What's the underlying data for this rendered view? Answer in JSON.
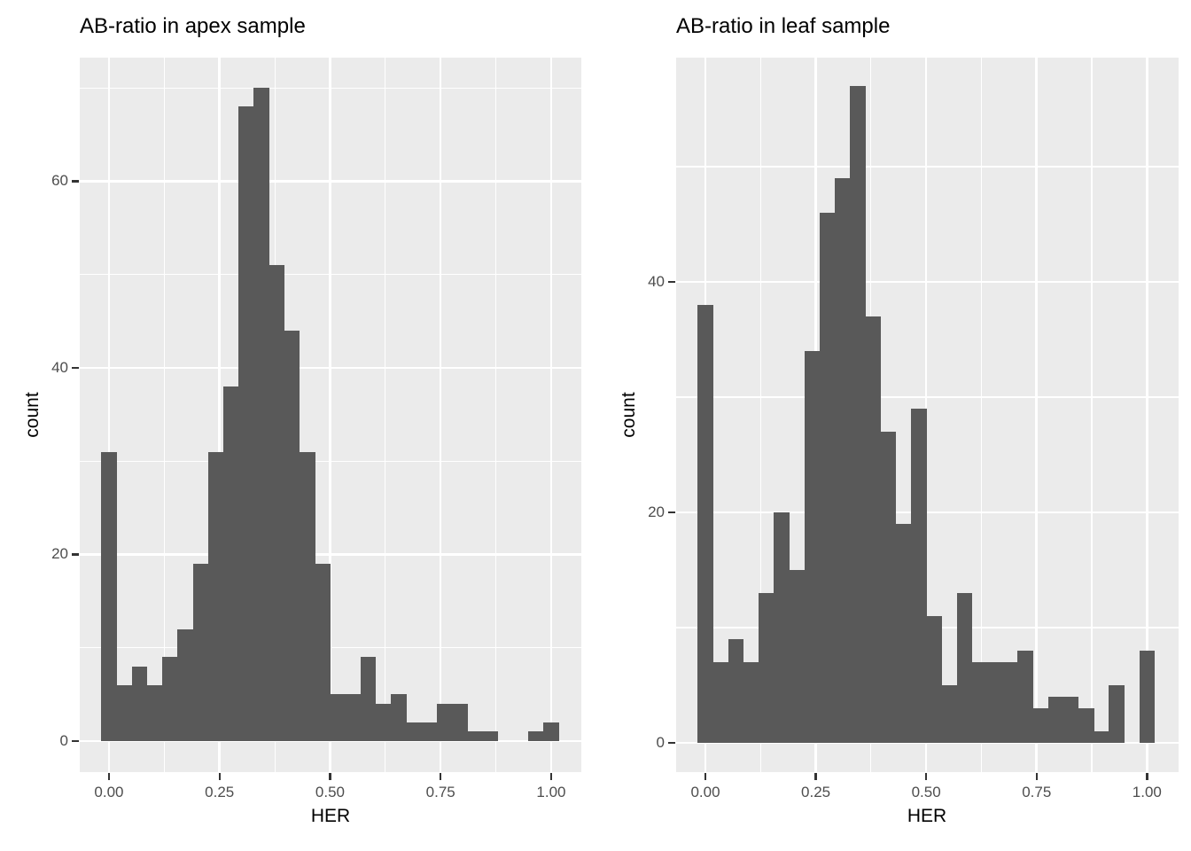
{
  "figure_colors": {
    "background": "#FFFFFF",
    "panel_background": "#EBEBEB",
    "grid_major": "#FFFFFF",
    "grid_minor": "#FFFFFF",
    "bar_fill": "#595959",
    "tick_mark": "#333333",
    "tick_label": "#4D4D4D",
    "title": "#000000"
  },
  "chart_data": [
    {
      "type": "bar",
      "subtype": "histogram",
      "title": "AB-ratio in apex sample",
      "xlabel": "HER",
      "ylabel": "count",
      "bin_width": 0.034483,
      "first_bin_center": 0.0,
      "bin_centers_note": "30 bins centered at k/29 for k=0..29",
      "counts": [
        31,
        6,
        8,
        6,
        9,
        12,
        19,
        31,
        38,
        68,
        70,
        51,
        44,
        31,
        19,
        5,
        5,
        9,
        4,
        5,
        2,
        2,
        4,
        4,
        1,
        1,
        0,
        0,
        1,
        2
      ],
      "xlim": [
        -0.0661,
        1.0682
      ],
      "ylim": [
        -3.33,
        73.24
      ],
      "grid": true,
      "x_ticks": [
        {
          "v": 0,
          "label": "0.00"
        },
        {
          "v": 0.25,
          "label": "0.25"
        },
        {
          "v": 0.5,
          "label": "0.50"
        },
        {
          "v": 0.75,
          "label": "0.75"
        },
        {
          "v": 1,
          "label": "1.00"
        }
      ],
      "y_ticks": [
        {
          "v": 0,
          "label": "0"
        },
        {
          "v": 20,
          "label": "20"
        },
        {
          "v": 40,
          "label": "40"
        },
        {
          "v": 60,
          "label": "60"
        }
      ],
      "x_minor": [
        0.125,
        0.375,
        0.625,
        0.875
      ],
      "y_minor": [
        10,
        30,
        50,
        70
      ]
    },
    {
      "type": "bar",
      "subtype": "histogram",
      "title": "AB-ratio in leaf sample",
      "xlabel": "HER",
      "ylabel": "count",
      "bin_width": 0.034483,
      "first_bin_center": 0.0,
      "bin_centers_note": "30 bins centered at k/29 for k=0..29",
      "counts": [
        38,
        7,
        9,
        7,
        13,
        20,
        15,
        34,
        46,
        49,
        57,
        37,
        27,
        19,
        29,
        11,
        5,
        13,
        7,
        7,
        7,
        8,
        3,
        4,
        4,
        3,
        1,
        5,
        0,
        8
      ],
      "xlim": [
        -0.0662,
        1.0716
      ],
      "ylim": [
        -2.54,
        59.46
      ],
      "grid": true,
      "x_ticks": [
        {
          "v": 0,
          "label": "0.00"
        },
        {
          "v": 0.25,
          "label": "0.25"
        },
        {
          "v": 0.5,
          "label": "0.50"
        },
        {
          "v": 0.75,
          "label": "0.75"
        },
        {
          "v": 1,
          "label": "1.00"
        }
      ],
      "y_ticks": [
        {
          "v": 0,
          "label": "0"
        },
        {
          "v": 20,
          "label": "20"
        },
        {
          "v": 40,
          "label": "40"
        }
      ],
      "x_minor": [
        0.125,
        0.375,
        0.625,
        0.875
      ],
      "y_minor": [
        10,
        30,
        50
      ]
    }
  ]
}
